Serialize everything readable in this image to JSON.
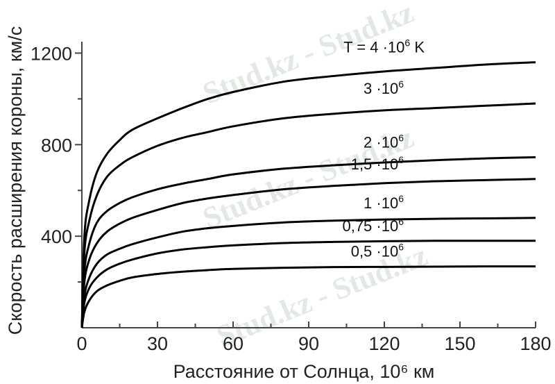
{
  "watermark": "Stud.kz - Stud.kz",
  "chart_data": {
    "type": "line",
    "xlabel": "Расстояние от Солнца, 10⁶ км",
    "ylabel": "Скорость расширения короны, км/с",
    "xlim": [
      0,
      180
    ],
    "ylim": [
      0,
      1250
    ],
    "xticks": [
      0,
      30,
      60,
      90,
      120,
      150,
      180
    ],
    "yticks": [
      400,
      800,
      1200
    ],
    "grid": false,
    "legend": "none",
    "series": [
      {
        "name": "T = 4·10⁶ K",
        "label": {
          "text": "T = 4 ·10",
          "sup": "6",
          "suffix": " K"
        },
        "x": [
          0,
          1,
          3,
          6,
          10,
          15,
          20,
          30,
          40,
          50,
          60,
          80,
          100,
          120,
          140,
          160,
          180
        ],
        "y": [
          0,
          400,
          560,
          680,
          760,
          820,
          865,
          915,
          960,
          1000,
          1030,
          1075,
          1100,
          1120,
          1135,
          1150,
          1160
        ]
      },
      {
        "name": "3·10⁶",
        "label": {
          "text": "3 ·10",
          "sup": "6",
          "suffix": ""
        },
        "x": [
          0,
          1,
          3,
          6,
          10,
          15,
          20,
          30,
          40,
          50,
          60,
          80,
          100,
          120,
          140,
          160,
          180
        ],
        "y": [
          0,
          330,
          470,
          580,
          660,
          710,
          745,
          795,
          830,
          855,
          880,
          915,
          935,
          950,
          960,
          970,
          980
        ]
      },
      {
        "name": "2·10⁶",
        "label": {
          "text": "2 ·10",
          "sup": "6",
          "suffix": ""
        },
        "x": [
          0,
          1,
          3,
          6,
          10,
          15,
          20,
          30,
          40,
          50,
          60,
          80,
          100,
          120,
          140,
          160,
          180
        ],
        "y": [
          0,
          250,
          370,
          460,
          510,
          545,
          570,
          605,
          630,
          650,
          670,
          695,
          710,
          722,
          732,
          740,
          745
        ]
      },
      {
        "name": "1,5·10⁶",
        "label": {
          "text": "1,5 ·10",
          "sup": "6",
          "suffix": ""
        },
        "x": [
          0,
          1,
          3,
          6,
          10,
          15,
          20,
          30,
          40,
          50,
          60,
          80,
          100,
          120,
          140,
          160,
          180
        ],
        "y": [
          0,
          200,
          300,
          370,
          420,
          455,
          480,
          515,
          545,
          565,
          580,
          605,
          620,
          632,
          640,
          645,
          650
        ]
      },
      {
        "name": "1·10⁶",
        "label": {
          "text": "1 ·10",
          "sup": "6",
          "suffix": ""
        },
        "x": [
          0,
          1,
          3,
          6,
          10,
          15,
          20,
          30,
          40,
          50,
          60,
          80,
          100,
          120,
          140,
          160,
          180
        ],
        "y": [
          0,
          140,
          220,
          280,
          320,
          345,
          365,
          395,
          420,
          435,
          445,
          460,
          468,
          473,
          476,
          478,
          480
        ]
      },
      {
        "name": "0,75·10⁶",
        "label": {
          "text": "0,75 ·10",
          "sup": "6",
          "suffix": ""
        },
        "x": [
          0,
          1,
          3,
          6,
          10,
          15,
          20,
          30,
          40,
          50,
          60,
          80,
          100,
          120,
          140,
          160,
          180
        ],
        "y": [
          0,
          110,
          175,
          220,
          255,
          280,
          298,
          325,
          342,
          352,
          360,
          370,
          375,
          378,
          380,
          380,
          380
        ]
      },
      {
        "name": "0,5·10⁶",
        "label": {
          "text": "0,5 ·10",
          "sup": "6",
          "suffix": ""
        },
        "x": [
          0,
          1,
          3,
          6,
          10,
          15,
          20,
          30,
          40,
          50,
          60,
          80,
          100,
          120,
          140,
          160,
          180
        ],
        "y": [
          0,
          70,
          120,
          160,
          185,
          205,
          220,
          235,
          245,
          252,
          257,
          262,
          265,
          266,
          267,
          268,
          268
        ]
      }
    ]
  }
}
